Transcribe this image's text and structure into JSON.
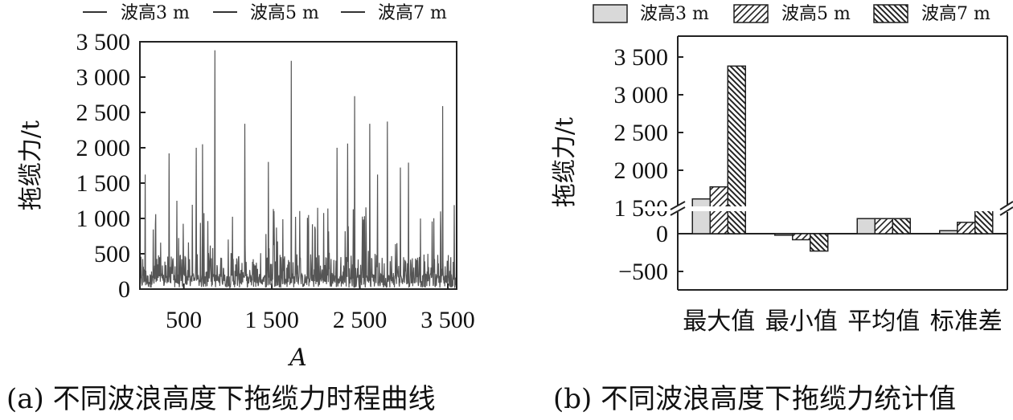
{
  "chart_data": [
    {
      "type": "line",
      "panel": "a",
      "caption": "(a) 不同波浪高度下拖缆力时程曲线",
      "xlabel": "A",
      "ylabel": "拖缆力/t",
      "xlim": [
        1,
        3600
      ],
      "ylim": [
        0,
        3500
      ],
      "xticks": [
        500,
        1500,
        2500,
        3500
      ],
      "xtick_labels": [
        "500",
        "1 500",
        "2 500",
        "3 500"
      ],
      "yticks": [
        0,
        500,
        1000,
        1500,
        2000,
        2500,
        3000,
        3500
      ],
      "ytick_labels": [
        "0",
        "500",
        "1 000",
        "1 500",
        "2 000",
        "2 500",
        "3 000",
        "3 500"
      ],
      "legend_position": "top",
      "series": [
        {
          "name": "波高3 m",
          "color": "#555555"
        },
        {
          "name": "波高5 m",
          "color": "#555555"
        },
        {
          "name": "波高7 m",
          "color": "#555555"
        }
      ],
      "peaks": [
        {
          "x": 60,
          "y": 1620
        },
        {
          "x": 180,
          "y": 1060
        },
        {
          "x": 330,
          "y": 1920
        },
        {
          "x": 420,
          "y": 1250
        },
        {
          "x": 640,
          "y": 2000
        },
        {
          "x": 710,
          "y": 2050
        },
        {
          "x": 850,
          "y": 3380
        },
        {
          "x": 1190,
          "y": 2340
        },
        {
          "x": 1460,
          "y": 1800
        },
        {
          "x": 1720,
          "y": 3230
        },
        {
          "x": 2020,
          "y": 1150
        },
        {
          "x": 2240,
          "y": 2000
        },
        {
          "x": 2360,
          "y": 2060
        },
        {
          "x": 2440,
          "y": 2730
        },
        {
          "x": 2610,
          "y": 2340
        },
        {
          "x": 2700,
          "y": 1620
        },
        {
          "x": 2810,
          "y": 2370
        },
        {
          "x": 2960,
          "y": 1720
        },
        {
          "x": 3050,
          "y": 1790
        },
        {
          "x": 3440,
          "y": 2590
        }
      ]
    },
    {
      "type": "bar",
      "panel": "b",
      "caption": "(b) 不同波浪高度下拖缆力统计值",
      "ylabel": "拖缆力/t",
      "categories": [
        "最大值",
        "最小值",
        "平均值",
        "标准差"
      ],
      "y_axis_break": true,
      "yticks": [
        -500,
        0,
        1500,
        2000,
        2500,
        3000,
        3500
      ],
      "ytick_labels": [
        "−500",
        "0",
        "1 500",
        "2 000",
        "2 500",
        "3 000",
        "3 500"
      ],
      "legend_position": "top",
      "series": [
        {
          "name": "波高3 m",
          "fill": "plain",
          "values": [
            1620,
            -20,
            200,
            40
          ]
        },
        {
          "name": "波高5 m",
          "fill": "hatch-forward",
          "values": [
            1780,
            -80,
            200,
            150
          ]
        },
        {
          "name": "波高7 m",
          "fill": "hatch-back",
          "values": [
            3380,
            -230,
            200,
            310
          ]
        }
      ]
    }
  ]
}
